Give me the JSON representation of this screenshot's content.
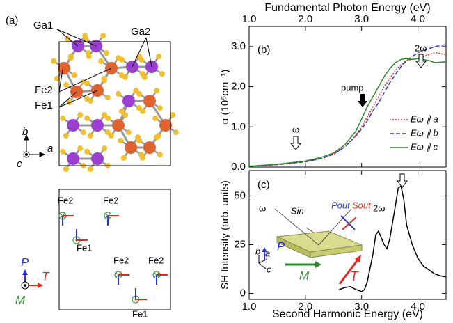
{
  "chart_data": [
    {
      "type": "line",
      "panel": "(b)",
      "xlabel": "Fundamental Photon Energy (eV)",
      "ylabel": "α (10⁵cm⁻¹)",
      "xlim": [
        1.0,
        4.5
      ],
      "ylim": [
        0,
        3.5
      ],
      "xticks": [
        {
          "value": 1,
          "label": "1.0"
        },
        {
          "value": 2,
          "label": "2.0"
        },
        {
          "value": 3,
          "label": "3.0"
        },
        {
          "value": 4,
          "label": "4.0"
        }
      ],
      "yticks": [
        {
          "value": 0,
          "label": "0.0"
        },
        {
          "value": 1,
          "label": "1.0"
        },
        {
          "value": 2,
          "label": "2.0"
        },
        {
          "value": 3,
          "label": "3.0"
        }
      ],
      "x": [
        1.0,
        1.5,
        2.0,
        2.3,
        2.5,
        2.7,
        2.9,
        3.0,
        3.1,
        3.2,
        3.3,
        3.4,
        3.5,
        3.6,
        3.7,
        3.8,
        3.9,
        4.0,
        4.2,
        4.3,
        4.5
      ],
      "series": [
        {
          "name": "Eω ∥ a",
          "color": "#e8261f",
          "dash": "2,2",
          "values": [
            0.02,
            0.06,
            0.13,
            0.22,
            0.32,
            0.5,
            0.8,
            1.0,
            1.25,
            1.5,
            1.75,
            2.0,
            2.2,
            2.4,
            2.55,
            2.65,
            2.68,
            2.7,
            2.8,
            2.85,
            2.8
          ]
        },
        {
          "name": "Eω ∥ b",
          "color": "#2b35d6",
          "dash": "6,3",
          "values": [
            0.02,
            0.06,
            0.13,
            0.22,
            0.32,
            0.5,
            0.78,
            0.95,
            1.15,
            1.4,
            1.6,
            1.85,
            2.1,
            2.3,
            2.5,
            2.65,
            2.75,
            2.85,
            2.95,
            3.0,
            3.05
          ]
        },
        {
          "name": "Eω ∥ c",
          "color": "#2a8a2a",
          "dash": "none",
          "values": [
            0.02,
            0.07,
            0.15,
            0.25,
            0.35,
            0.55,
            0.9,
            1.2,
            1.5,
            1.75,
            2.0,
            2.25,
            2.45,
            2.6,
            2.68,
            2.7,
            2.68,
            2.7,
            2.65,
            2.6,
            2.62
          ]
        }
      ],
      "annotations": [
        "2ω",
        "pump",
        "ω"
      ]
    },
    {
      "type": "line",
      "panel": "(c)",
      "xlabel": "Second Harmonic Energy (eV)",
      "ylabel": "SH Intensity (arb. units)",
      "xlim": [
        1.0,
        4.5
      ],
      "ylim": [
        -3,
        63
      ],
      "xticks": [
        {
          "value": 1,
          "label": "1.0"
        },
        {
          "value": 2,
          "label": "2.0"
        },
        {
          "value": 3,
          "label": "3.0"
        },
        {
          "value": 4,
          "label": "4.0"
        }
      ],
      "yticks": [
        0,
        25,
        50
      ],
      "x": [
        2.6,
        2.7,
        2.8,
        2.9,
        3.0,
        3.05,
        3.1,
        3.2,
        3.25,
        3.3,
        3.4,
        3.45,
        3.5,
        3.6,
        3.65,
        3.7,
        3.75,
        3.8,
        3.9,
        4.0,
        4.1,
        4.2,
        4.3,
        4.4,
        4.5
      ],
      "series": [
        {
          "color": "#000000",
          "dash": "none",
          "values": [
            2,
            3,
            3.5,
            2,
            1,
            2,
            6,
            20,
            30,
            32,
            25,
            23,
            28,
            45,
            54,
            55,
            48,
            35,
            25,
            18,
            14,
            12,
            10,
            9,
            8.5
          ]
        }
      ],
      "annotations": [
        "ω",
        "Sin",
        "Pout",
        "Sout",
        "2ω",
        "P",
        "b",
        "a",
        "c",
        "M",
        "T"
      ]
    }
  ],
  "panel_a": {
    "label": "(a)",
    "atoms": [
      "Ga1",
      "Ga2",
      "Fe2",
      "Fe1"
    ],
    "axes": [
      "b",
      "a",
      "c"
    ],
    "spins": [
      "Fe2",
      "Fe2",
      "Fe1",
      "Fe2",
      "Fe2",
      "Fe1"
    ],
    "legend": [
      "P",
      "T",
      "M"
    ]
  }
}
